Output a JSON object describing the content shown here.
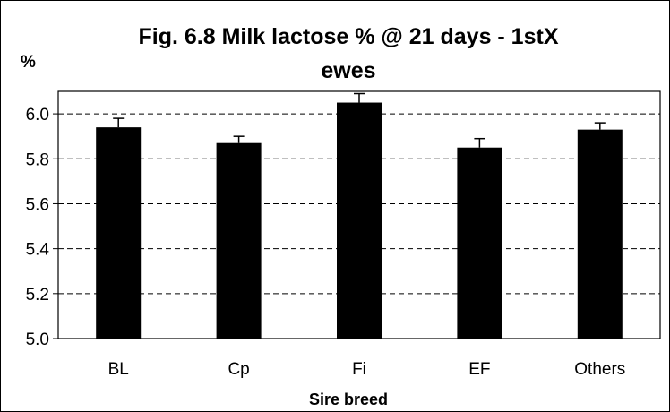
{
  "chart_data": {
    "type": "bar",
    "title_lines": [
      "Fig. 6.8 Milk lactose % @ 21 days - 1stX",
      "ewes"
    ],
    "ylabel": "%",
    "xlabel": "Sire breed",
    "categories": [
      "BL",
      "Cp",
      "Fi",
      "EF",
      "Others"
    ],
    "values": [
      5.94,
      5.87,
      6.05,
      5.85,
      5.93
    ],
    "error": [
      0.04,
      0.03,
      0.04,
      0.04,
      0.03
    ],
    "ylim": [
      5.0,
      6.1
    ],
    "yticks": [
      "5.0",
      "5.2",
      "5.4",
      "5.6",
      "5.8",
      "6.0"
    ],
    "grid": "dashed horizontal",
    "colors": {
      "bar": "#000000",
      "grid": "#000000",
      "background": "#ffffff"
    }
  }
}
